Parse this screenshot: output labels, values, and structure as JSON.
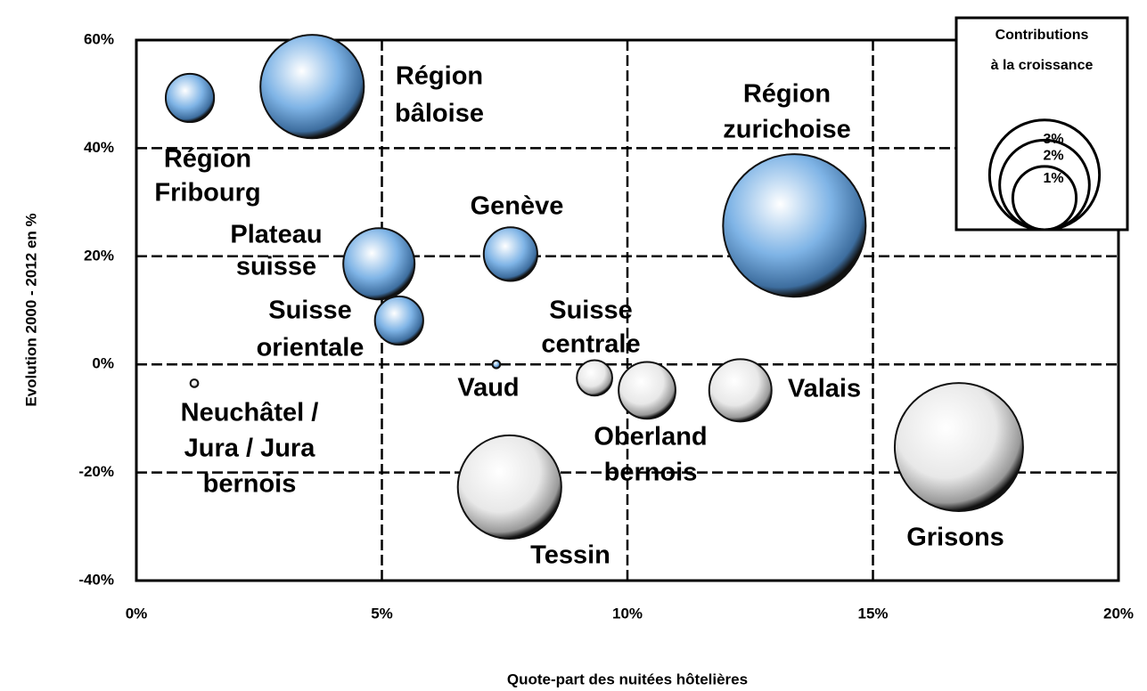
{
  "chart_data": {
    "type": "bubble",
    "xlabel": "Quote-part des nuitées hôtelières",
    "ylabel": "Evolution 2000 - 2012 en %",
    "xlim": [
      0,
      20
    ],
    "ylim": [
      -40,
      60
    ],
    "xticks": [
      {
        "value": 0,
        "label": "0%"
      },
      {
        "value": 5,
        "label": "5%"
      },
      {
        "value": 10,
        "label": "10%"
      },
      {
        "value": 15,
        "label": "15%"
      },
      {
        "value": 20,
        "label": "20%"
      }
    ],
    "yticks": [
      {
        "value": -40,
        "label": "-40%"
      },
      {
        "value": -20,
        "label": "-20%"
      },
      {
        "value": 0,
        "label": "0%"
      },
      {
        "value": 20,
        "label": "20%"
      },
      {
        "value": 40,
        "label": "40%"
      },
      {
        "value": 60,
        "label": "60%"
      }
    ],
    "grid": true,
    "positive_color": "#7fb4e6",
    "negative_color": "#e8e8e8",
    "points": [
      {
        "label": [
          "Région",
          "Fribourg"
        ],
        "x": 1.09,
        "y": 49.3,
        "size": 0.39
      },
      {
        "label": [
          "Région",
          "bâloise"
        ],
        "x": 3.58,
        "y": 51.4,
        "size": 1.79
      },
      {
        "label": [
          "Région",
          "zurichoise"
        ],
        "x": 13.4,
        "y": 25.7,
        "size": 3.4
      },
      {
        "label": [
          "Genève"
        ],
        "x": 7.62,
        "y": 20.4,
        "size": 0.48
      },
      {
        "label": [
          "Plateau",
          "suisse"
        ],
        "x": 4.94,
        "y": 18.6,
        "size": 0.85
      },
      {
        "label": [
          "Suisse",
          "orientale"
        ],
        "x": 5.35,
        "y": 8.1,
        "size": 0.39
      },
      {
        "label": [
          "Neuchâtel /",
          "Jura / Jura",
          "bernois"
        ],
        "x": 1.18,
        "y": -3.5,
        "size": 0.01
      },
      {
        "label": [
          "Vaud"
        ],
        "x": 7.33,
        "y": 0,
        "size": 0.01
      },
      {
        "label": [
          "Suisse",
          "centrale"
        ],
        "x": 9.33,
        "y": -2.5,
        "size": 0.21
      },
      {
        "label": [
          "Oberland",
          "bernois"
        ],
        "x": 10.4,
        "y": -4.8,
        "size": 0.54
      },
      {
        "label": [
          "Valais"
        ],
        "x": 12.3,
        "y": -4.8,
        "size": 0.65
      },
      {
        "label": [
          "Tessin"
        ],
        "x": 7.6,
        "y": -22.7,
        "size": 1.79
      },
      {
        "label": [
          "Grisons"
        ],
        "x": 16.75,
        "y": -15.3,
        "size": 2.75
      }
    ],
    "size_legend": {
      "title": [
        "Contributions",
        "à la croissance"
      ],
      "sizes": [
        {
          "value": 3,
          "label": "3%"
        },
        {
          "value": 2,
          "label": "2%"
        },
        {
          "value": 1,
          "label": "1%"
        }
      ]
    }
  }
}
